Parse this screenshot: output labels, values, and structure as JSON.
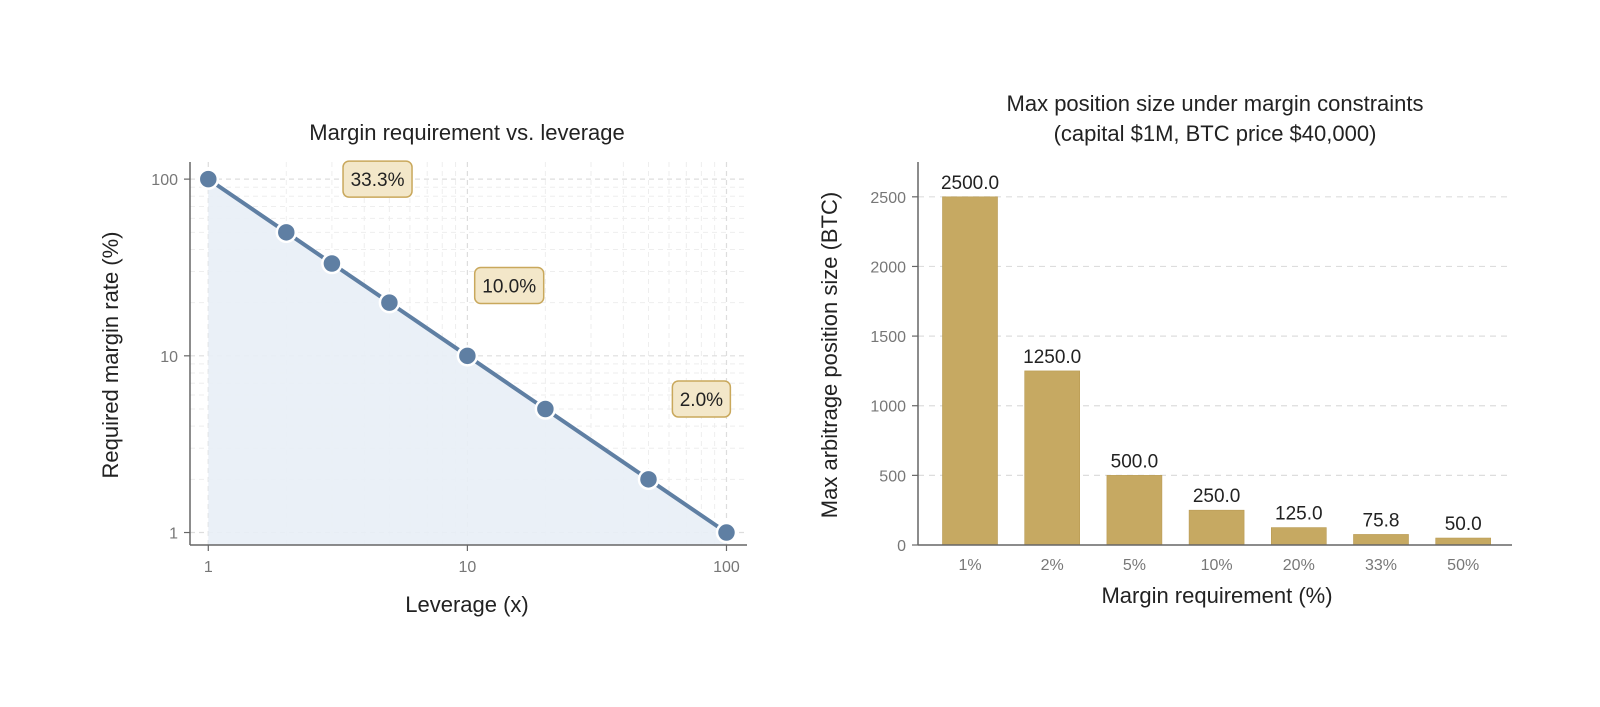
{
  "chart_data": [
    {
      "type": "line",
      "title": "Margin requirement vs. leverage",
      "xlabel": "Leverage (x)",
      "ylabel": "Required margin rate (%)",
      "xscale": "log",
      "yscale": "log",
      "xlim": [
        0.85,
        120
      ],
      "ylim": [
        0.85,
        125
      ],
      "grid": true,
      "xticks": [
        1,
        10,
        100
      ],
      "xtick_labels": [
        "1",
        "10",
        "100"
      ],
      "yticks": [
        1,
        10,
        100
      ],
      "ytick_labels": [
        "1",
        "10",
        "100"
      ],
      "series": [
        {
          "x": [
            1,
            2,
            3,
            5,
            10,
            20,
            50,
            100
          ],
          "y": [
            100,
            50,
            33.3,
            20,
            10,
            5,
            2,
            1
          ],
          "color": "#5f7fa3",
          "fill_color": "#e8eef6"
        }
      ],
      "annotations": [
        {
          "text": "33.3%",
          "x": 4.5,
          "y": 100
        },
        {
          "text": "10.0%",
          "x": 14.5,
          "y": 25
        },
        {
          "text": "2.0%",
          "x": 80,
          "y": 5.7
        }
      ],
      "annotation_fill": "#f3e7c9",
      "annotation_border": "#c9a85c"
    },
    {
      "type": "bar",
      "title": "Max position size under margin constraints",
      "subtitle": "(capital $1M, BTC price $40,000)",
      "xlabel": "Margin requirement (%)",
      "ylabel": "Max arbitrage position size (BTC)",
      "categories": [
        "1%",
        "2%",
        "5%",
        "10%",
        "20%",
        "33%",
        "50%"
      ],
      "values": [
        2500.0,
        1250.0,
        500.0,
        250.0,
        125.0,
        75.8,
        50.0
      ],
      "data_labels": [
        "2500.0",
        "1250.0",
        "500.0",
        "250.0",
        "125.0",
        "75.8",
        "50.0"
      ],
      "ylim": [
        0,
        2750
      ],
      "yticks": [
        0,
        500,
        1000,
        1500,
        2000,
        2500
      ],
      "ytick_labels": [
        "0",
        "500",
        "1000",
        "1500",
        "2000",
        "2500"
      ],
      "grid": "horizontal-dashed",
      "color": "#c6a962"
    }
  ]
}
